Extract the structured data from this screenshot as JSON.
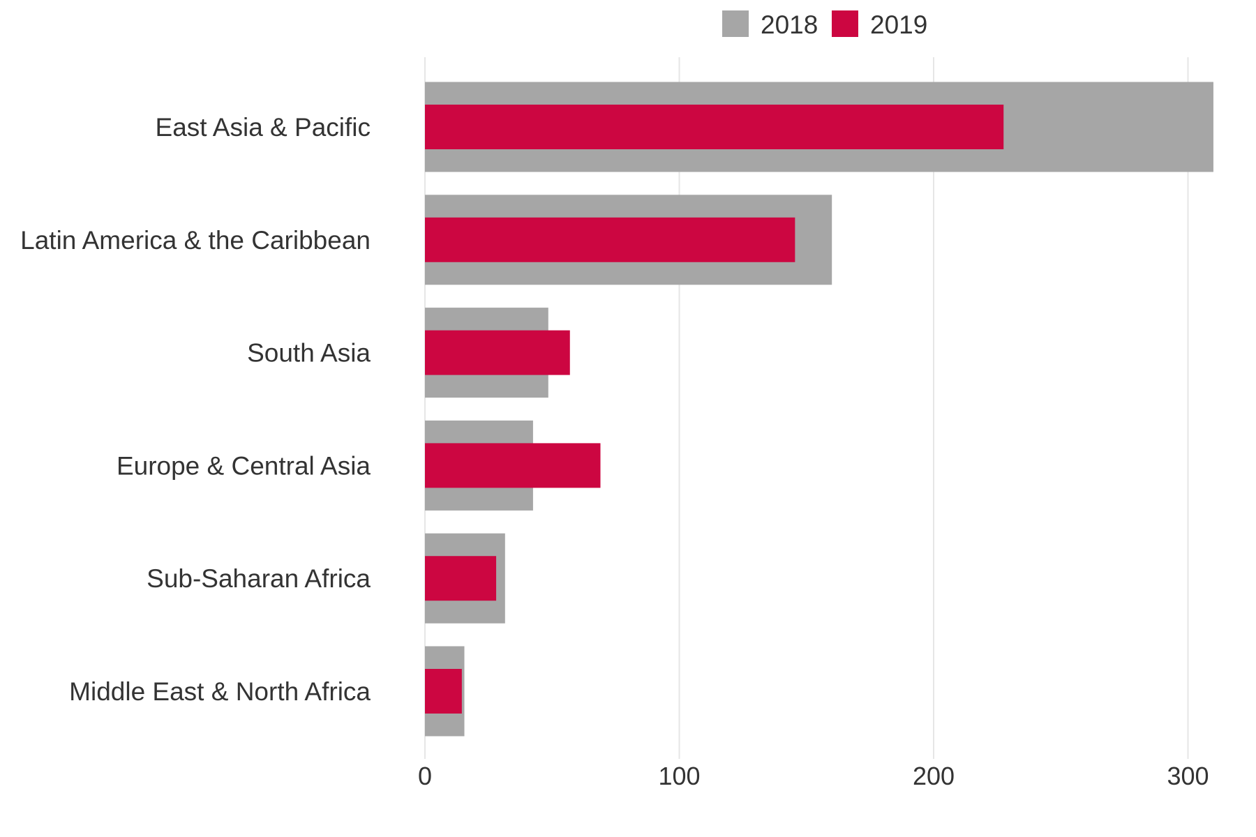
{
  "chart_data": {
    "type": "bar",
    "orientation": "horizontal",
    "categories": [
      "East Asia & Pacific",
      "Latin America & the Caribbean",
      "South Asia",
      "Europe & Central Asia",
      "Sub-Saharan Africa",
      "Middle East & North Africa"
    ],
    "series": [
      {
        "name": "2018",
        "color": "#a6a6a6",
        "values": [
          310,
          160,
          48.5,
          42.5,
          31.5,
          15.5
        ]
      },
      {
        "name": "2019",
        "color": "#cc0641",
        "values": [
          227.5,
          145.5,
          57,
          69,
          28,
          14.5
        ]
      }
    ],
    "xticks": [
      0,
      100,
      200,
      300
    ],
    "xlim": [
      0,
      310
    ],
    "grid": true,
    "legend": "top-center",
    "title": "",
    "xlabel": "",
    "ylabel": ""
  }
}
